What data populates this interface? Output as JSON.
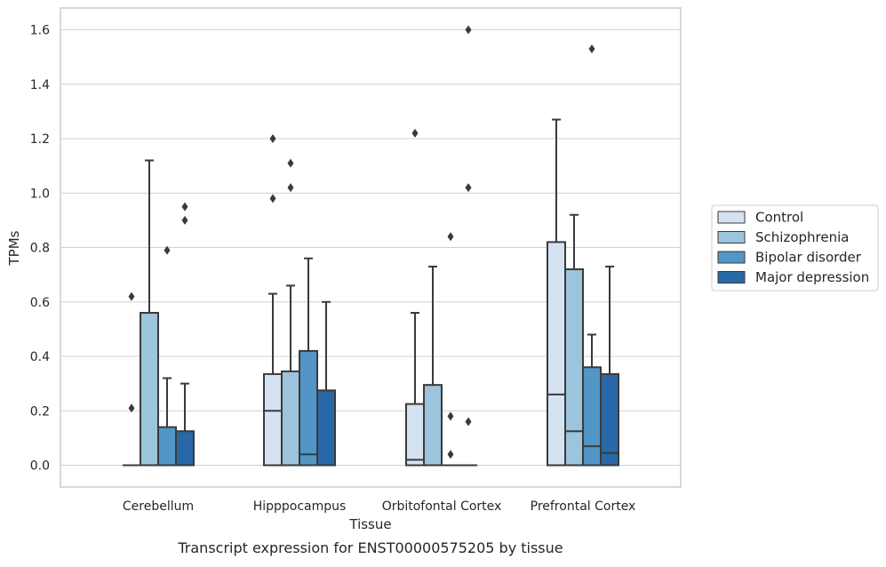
{
  "caption": "Transcript expression for ENST00000575205 by tissue",
  "colors": {
    "series": [
      "#d4e2f2",
      "#9cc4dc",
      "#5196c7",
      "#2968a6"
    ],
    "stroke": "#3a3a3a",
    "grid": "#d0d0d0",
    "frame": "#cccccc"
  },
  "chart_data": {
    "type": "box",
    "xlabel": "Tissue",
    "ylabel": "TPMs",
    "ylim": [
      -0.08,
      1.68
    ],
    "yticks": [
      0.0,
      0.2,
      0.4,
      0.6,
      0.8,
      1.0,
      1.2,
      1.4,
      1.6
    ],
    "ytick_labels": [
      "0.0",
      "0.2",
      "0.4",
      "0.6",
      "0.8",
      "1.0",
      "1.2",
      "1.4",
      "1.6"
    ],
    "grid": true,
    "legend_position": "right",
    "categories": [
      "Cerebellum",
      "Hipppocampus",
      "Orbitofontal Cortex",
      "Prefrontal Cortex"
    ],
    "series": [
      {
        "name": "Control",
        "boxes": [
          {
            "q1": 0.0,
            "median": 0.0,
            "q3": 0.0,
            "whislo": 0.0,
            "whishi": 0.0,
            "fliers": [
              0.21,
              0.62
            ]
          },
          {
            "q1": 0.0,
            "median": 0.2,
            "q3": 0.335,
            "whislo": 0.0,
            "whishi": 0.63,
            "fliers": [
              0.98,
              1.2
            ]
          },
          {
            "q1": 0.0,
            "median": 0.02,
            "q3": 0.225,
            "whislo": 0.0,
            "whishi": 0.56,
            "fliers": [
              1.22
            ]
          },
          {
            "q1": 0.0,
            "median": 0.26,
            "q3": 0.82,
            "whislo": 0.0,
            "whishi": 1.27,
            "fliers": []
          }
        ]
      },
      {
        "name": "Schizophrenia",
        "boxes": [
          {
            "q1": 0.0,
            "median": 0.0,
            "q3": 0.56,
            "whislo": 0.0,
            "whishi": 1.12,
            "fliers": []
          },
          {
            "q1": 0.0,
            "median": 0.0,
            "q3": 0.345,
            "whislo": 0.0,
            "whishi": 0.66,
            "fliers": [
              1.02,
              1.11
            ]
          },
          {
            "q1": 0.0,
            "median": 0.0,
            "q3": 0.295,
            "whislo": 0.0,
            "whishi": 0.73,
            "fliers": []
          },
          {
            "q1": 0.0,
            "median": 0.125,
            "q3": 0.72,
            "whislo": 0.0,
            "whishi": 0.92,
            "fliers": []
          }
        ]
      },
      {
        "name": "Bipolar disorder",
        "boxes": [
          {
            "q1": 0.0,
            "median": 0.0,
            "q3": 0.14,
            "whislo": 0.0,
            "whishi": 0.32,
            "fliers": [
              0.79
            ]
          },
          {
            "q1": 0.0,
            "median": 0.04,
            "q3": 0.42,
            "whislo": 0.0,
            "whishi": 0.76,
            "fliers": []
          },
          {
            "q1": 0.0,
            "median": 0.0,
            "q3": 0.0,
            "whislo": 0.0,
            "whishi": 0.0,
            "fliers": [
              0.04,
              0.18,
              0.84
            ]
          },
          {
            "q1": 0.0,
            "median": 0.07,
            "q3": 0.36,
            "whislo": 0.0,
            "whishi": 0.48,
            "fliers": [
              1.53
            ]
          }
        ]
      },
      {
        "name": "Major depression",
        "boxes": [
          {
            "q1": 0.0,
            "median": 0.0,
            "q3": 0.125,
            "whislo": 0.0,
            "whishi": 0.3,
            "fliers": [
              0.9,
              0.95
            ]
          },
          {
            "q1": 0.0,
            "median": 0.0,
            "q3": 0.275,
            "whislo": 0.0,
            "whishi": 0.6,
            "fliers": []
          },
          {
            "q1": 0.0,
            "median": 0.0,
            "q3": 0.0,
            "whislo": 0.0,
            "whishi": 0.0,
            "fliers": [
              0.16,
              1.02,
              1.6
            ]
          },
          {
            "q1": 0.0,
            "median": 0.045,
            "q3": 0.335,
            "whislo": 0.0,
            "whishi": 0.73,
            "fliers": []
          }
        ]
      }
    ]
  }
}
